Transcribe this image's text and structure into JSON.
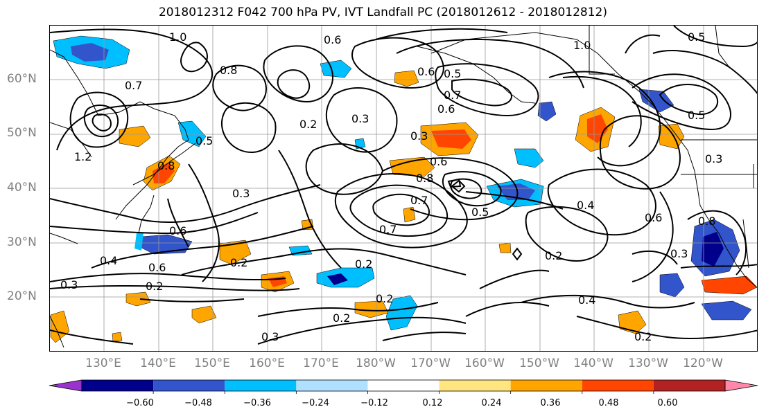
{
  "title": "2018012312 F042 700 hPa PV, IVT Landfall PC (2018012612 - 2018012812)",
  "lat_labels": [
    "60°N",
    "50°N",
    "40°N",
    "30°N",
    "20°N"
  ],
  "lon_labels": [
    "130°E",
    "140°E",
    "150°E",
    "160°E",
    "170°E",
    "180°W",
    "170°W",
    "160°W",
    "150°W",
    "140°W",
    "130°W",
    "120°W"
  ],
  "contour_labels": [
    "1.0",
    "0.6",
    "0.8",
    "0.8",
    "0.7",
    "0.6",
    "0.5",
    "0.2",
    "0.3",
    "0.3",
    "0.6",
    "0.7",
    "0.6",
    "0.8",
    "0.7",
    "0.5",
    "0.4",
    "0.6",
    "0.3",
    "0.2",
    "0.2",
    "0.2",
    "0.2",
    "0.4",
    "0.2",
    "0.3",
    "0.3",
    "0.6",
    "0.6",
    "0.4",
    "0.2",
    "0.3",
    "0.5",
    "1.0",
    "0.5",
    "0.3",
    "0.8",
    "0.2",
    "1.2",
    "0.5",
    "0.7"
  ],
  "colorbar": {
    "colors": [
      "#9933cc",
      "#00008b",
      "#3355cc",
      "#00bfff",
      "#b0e0ff",
      "#ffffff",
      "#ffe680",
      "#ffa500",
      "#ff4500",
      "#b22222",
      "#ff88aa"
    ],
    "tick_labels": [
      "−0.60",
      "−0.48",
      "−0.36",
      "−0.24",
      "−0.12",
      "0.12",
      "0.24",
      "0.36",
      "0.48",
      "0.60"
    ]
  },
  "colors": {
    "positive_strong": "#ff4500",
    "positive": "#ffa500",
    "positive_light": "#ffe680",
    "negative": "#00bfff",
    "negative_strong": "#3355cc",
    "negative_darkest": "#00008b",
    "grid": "#999999",
    "axis_label": "#808080"
  }
}
